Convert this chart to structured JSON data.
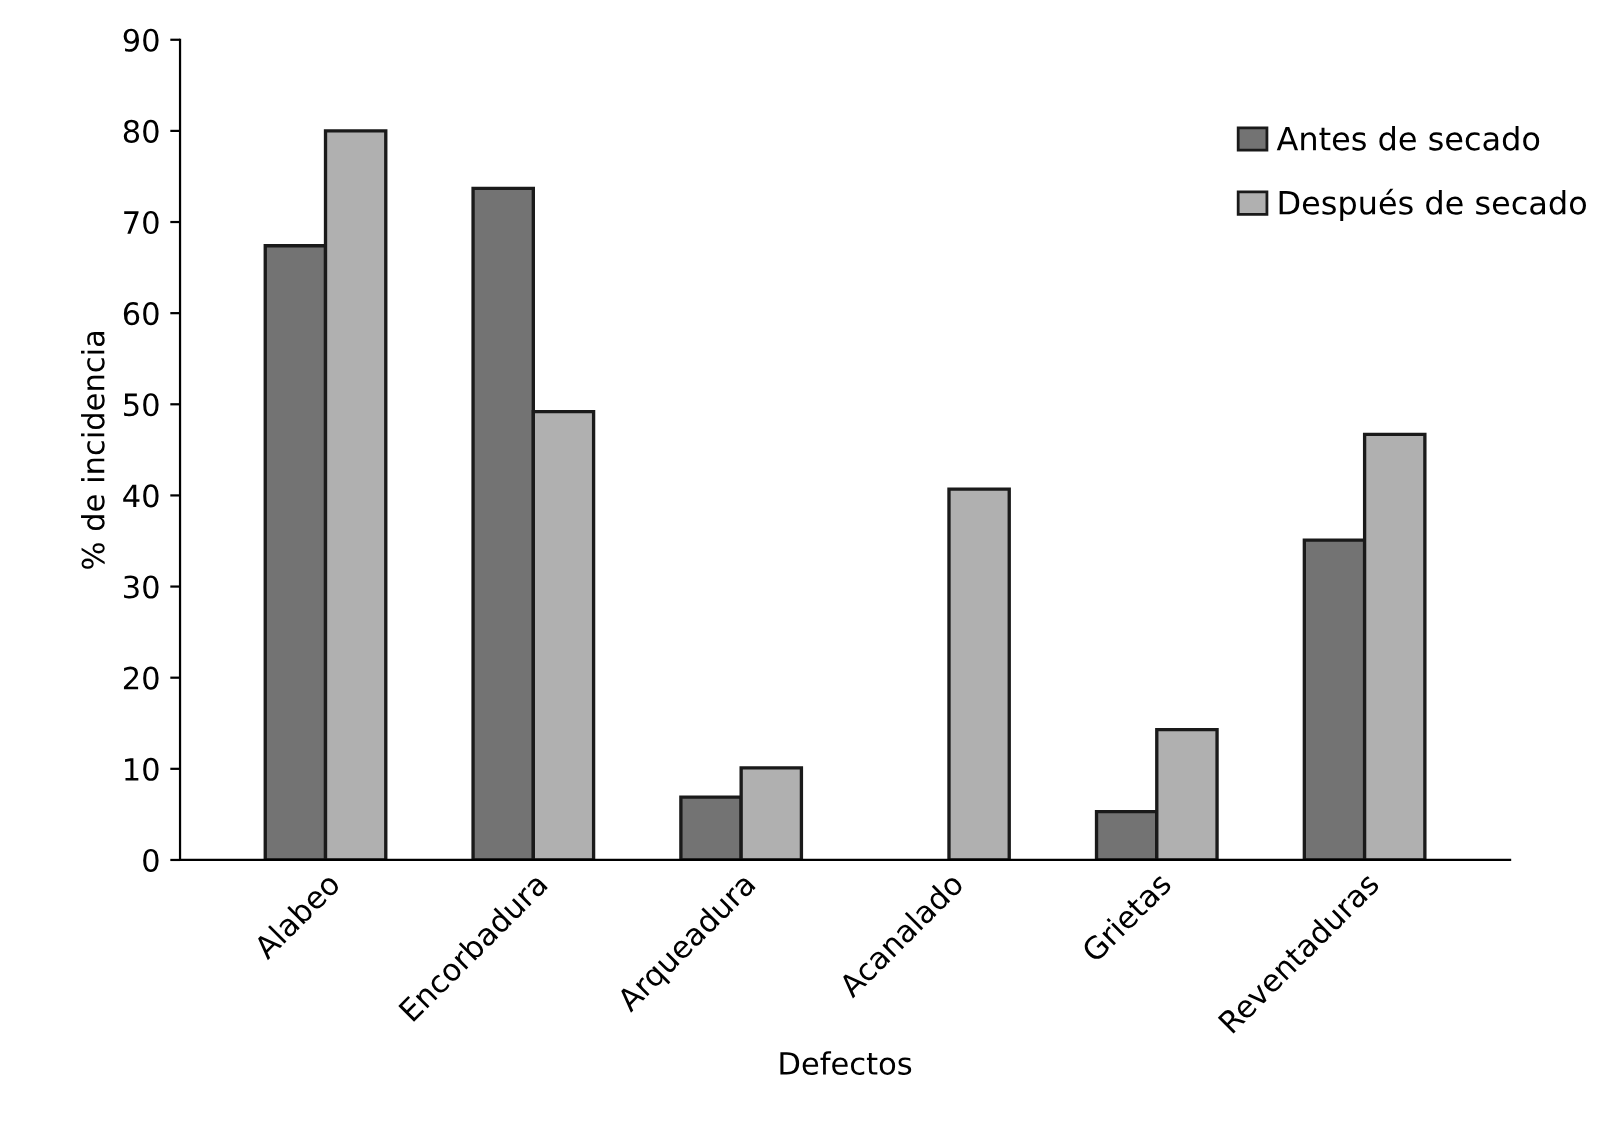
{
  "chart_data": {
    "type": "bar",
    "xlabel": "Defectos",
    "ylabel": "% de incidencia",
    "categories": [
      "Alabeo",
      "Encorbadura",
      "Arqueadura",
      "Acanalado",
      "Grietas",
      "Reventaduras"
    ],
    "series": [
      {
        "name": "Antes de secado",
        "color": "#737373",
        "values": [
          67.4,
          73.7,
          6.9,
          0,
          5.3,
          35.1
        ]
      },
      {
        "name": "Después de secado",
        "color": "#b0b0b0",
        "values": [
          80.0,
          49.2,
          10.1,
          40.7,
          14.3,
          46.7
        ]
      }
    ],
    "ylim": [
      0,
      90
    ],
    "yticks": [
      0,
      10,
      20,
      30,
      40,
      50,
      60,
      70,
      80,
      90
    ],
    "grid": false,
    "legend": "top right"
  }
}
